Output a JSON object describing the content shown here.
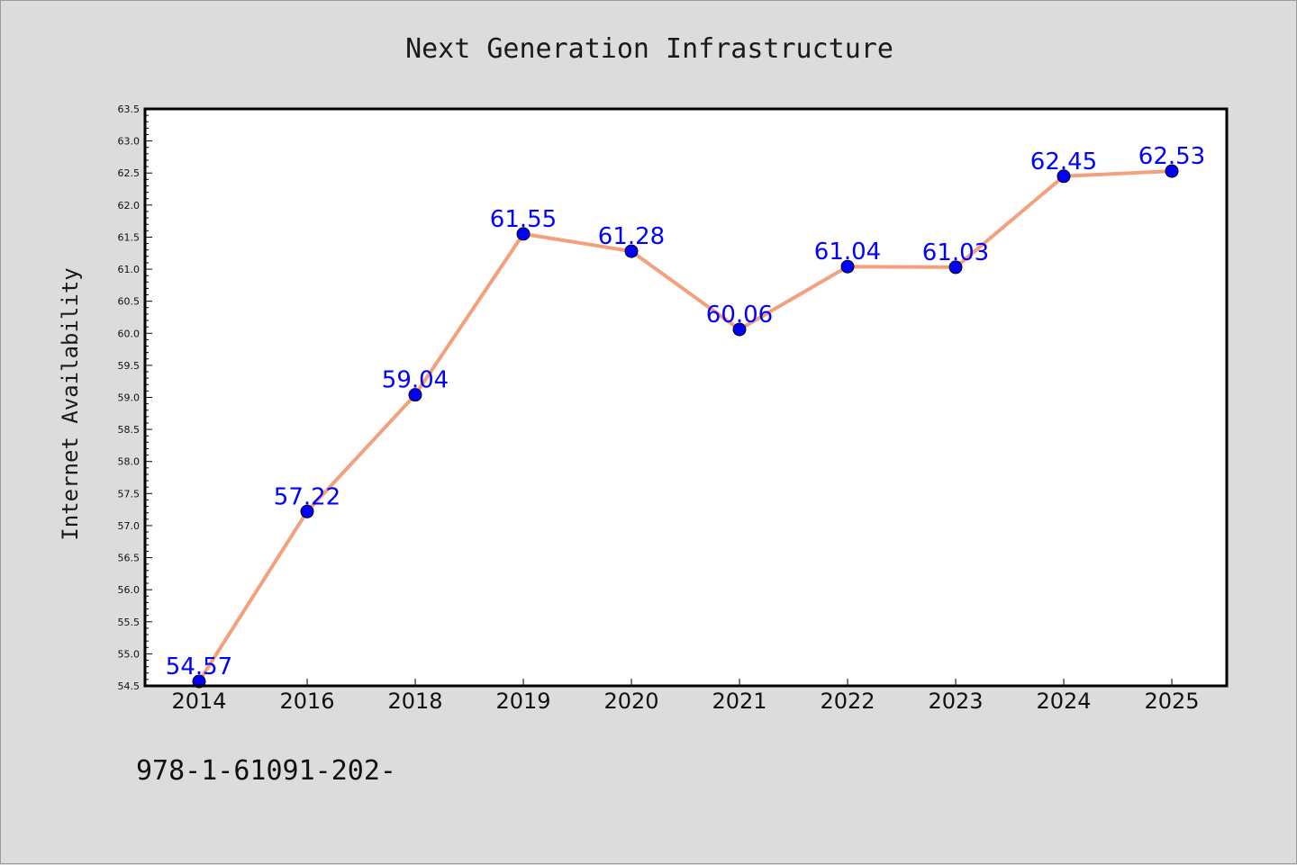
{
  "chart_data": {
    "type": "line",
    "title": "Next Generation Infrastructure",
    "xlabel": "",
    "ylabel": "Internet Availability",
    "categories": [
      "2014",
      "2016",
      "2018",
      "2019",
      "2020",
      "2021",
      "2022",
      "2023",
      "2024",
      "2025"
    ],
    "series": [
      {
        "values": [
          54.57,
          57.22,
          59.04,
          61.55,
          61.28,
          60.06,
          61.04,
          61.03,
          62.45,
          62.53
        ],
        "labels": [
          "54.57",
          "57.22",
          "59.04",
          "61.55",
          "61.28",
          "60.06",
          "61.04",
          "61.03",
          "62.45",
          "62.53"
        ],
        "line_color": "#f4a07e",
        "marker_color": "#0000ff"
      }
    ],
    "ylim": [
      54.5,
      63.5
    ],
    "yticks": [
      "54.5",
      "55.0",
      "55.5",
      "56.0",
      "56.5",
      "57.0",
      "57.5",
      "58.0",
      "58.5",
      "59.0",
      "59.5",
      "60.0",
      "60.5",
      "61.0",
      "61.5",
      "62.0",
      "62.5",
      "63.0",
      "63.5"
    ],
    "grid": false,
    "legend": "none"
  },
  "footer": {
    "text": "978-1-61091-202-"
  },
  "colors": {
    "background": "#dcdcdc",
    "plot_background": "#ffffff",
    "line": "#f4a07e",
    "marker": "#0000ff",
    "data_label": "#0000ff"
  }
}
